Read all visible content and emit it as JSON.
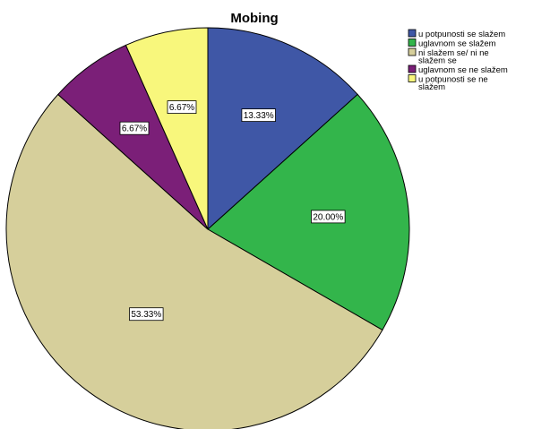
{
  "chart_data": {
    "type": "pie",
    "title": "Mobing",
    "categories": [
      "u potpunosti se slažem",
      "uglavnom se slažem",
      "ni slažem se/ ni ne slažem se",
      "uglavnom se ne slažem",
      "u potpunosti se ne slažem"
    ],
    "values": [
      13.33,
      20.0,
      53.33,
      6.67,
      6.67
    ],
    "labels": [
      "13.33%",
      "20.00%",
      "53.33%",
      "6.67%",
      "6.67%"
    ],
    "colors": [
      "#3f57a6",
      "#33b54b",
      "#d6cf9b",
      "#7b1f78",
      "#f8f77c"
    ],
    "legend_placement": "top-right",
    "start_angle": "12 o'clock",
    "direction": "clockwise"
  }
}
